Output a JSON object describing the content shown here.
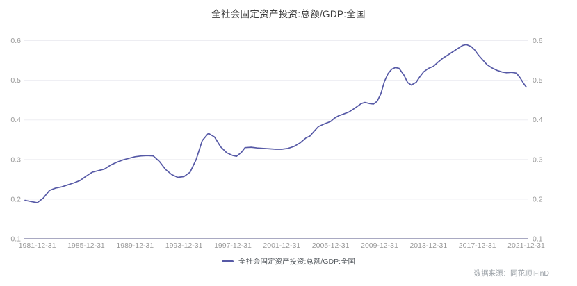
{
  "title": "全社会固定资产投资:总额/GDP:全国",
  "legend": {
    "label": "全社会固定资产投资:总额/GDP:全国"
  },
  "source": "数据来源：同花顺iFinD",
  "colors": {
    "line": "#5659a6",
    "gridline": "#ededf2",
    "axis_line": "#a9a9c2",
    "tick_label": "#999999",
    "title_text": "#3d3d3d",
    "legend_text": "#555a5f",
    "source_text": "#9aa0a6"
  },
  "chart_data": {
    "type": "line",
    "title": "全社会固定资产投资:总额/GDP:全国",
    "xlabel": "",
    "ylabel": "",
    "grid": true,
    "legend_position": "bottom-center",
    "ylim": [
      0.1,
      0.64
    ],
    "y_ticks": [
      0.6,
      0.5,
      0.4,
      0.3,
      0.2,
      0.1
    ],
    "x_ticks": [
      "1981-12-31",
      "1985-12-31",
      "1989-12-31",
      "1993-12-31",
      "1997-12-31",
      "2001-12-31",
      "2005-12-31",
      "2009-12-31",
      "2013-12-31",
      "2017-12-31",
      "2021-12-31"
    ],
    "x_range_years": [
      1980,
      2021
    ],
    "series": [
      {
        "name": "全社会固定资产投资:总额/GDP:全国",
        "color": "#5659a6",
        "points": [
          [
            1980.0,
            0.197
          ],
          [
            1980.5,
            0.194
          ],
          [
            1981.0,
            0.191
          ],
          [
            1981.5,
            0.203
          ],
          [
            1982.0,
            0.222
          ],
          [
            1982.5,
            0.228
          ],
          [
            1983.0,
            0.231
          ],
          [
            1983.5,
            0.236
          ],
          [
            1984.0,
            0.241
          ],
          [
            1984.5,
            0.247
          ],
          [
            1985.0,
            0.258
          ],
          [
            1985.5,
            0.268
          ],
          [
            1986.0,
            0.272
          ],
          [
            1986.5,
            0.276
          ],
          [
            1987.0,
            0.286
          ],
          [
            1987.5,
            0.293
          ],
          [
            1988.0,
            0.299
          ],
          [
            1988.5,
            0.303
          ],
          [
            1989.0,
            0.307
          ],
          [
            1989.5,
            0.309
          ],
          [
            1990.0,
            0.31
          ],
          [
            1990.5,
            0.309
          ],
          [
            1991.0,
            0.295
          ],
          [
            1991.5,
            0.275
          ],
          [
            1992.0,
            0.262
          ],
          [
            1992.5,
            0.255
          ],
          [
            1993.0,
            0.257
          ],
          [
            1993.5,
            0.268
          ],
          [
            1994.0,
            0.3
          ],
          [
            1994.5,
            0.348
          ],
          [
            1995.0,
            0.366
          ],
          [
            1995.5,
            0.357
          ],
          [
            1996.0,
            0.332
          ],
          [
            1996.5,
            0.317
          ],
          [
            1997.0,
            0.31
          ],
          [
            1997.3,
            0.308
          ],
          [
            1997.7,
            0.318
          ],
          [
            1998.0,
            0.33
          ],
          [
            1998.5,
            0.331
          ],
          [
            1999.0,
            0.329
          ],
          [
            1999.5,
            0.328
          ],
          [
            2000.0,
            0.327
          ],
          [
            2000.5,
            0.326
          ],
          [
            2001.0,
            0.326
          ],
          [
            2001.5,
            0.328
          ],
          [
            2002.0,
            0.333
          ],
          [
            2002.5,
            0.342
          ],
          [
            2003.0,
            0.355
          ],
          [
            2003.3,
            0.359
          ],
          [
            2003.7,
            0.373
          ],
          [
            2004.0,
            0.383
          ],
          [
            2004.5,
            0.39
          ],
          [
            2005.0,
            0.396
          ],
          [
            2005.3,
            0.404
          ],
          [
            2005.7,
            0.411
          ],
          [
            2006.0,
            0.414
          ],
          [
            2006.5,
            0.42
          ],
          [
            2007.0,
            0.43
          ],
          [
            2007.5,
            0.441
          ],
          [
            2007.8,
            0.444
          ],
          [
            2008.2,
            0.441
          ],
          [
            2008.5,
            0.44
          ],
          [
            2008.8,
            0.447
          ],
          [
            2009.1,
            0.465
          ],
          [
            2009.4,
            0.497
          ],
          [
            2009.7,
            0.517
          ],
          [
            2010.0,
            0.528
          ],
          [
            2010.3,
            0.532
          ],
          [
            2010.6,
            0.53
          ],
          [
            2011.0,
            0.513
          ],
          [
            2011.3,
            0.494
          ],
          [
            2011.6,
            0.488
          ],
          [
            2012.0,
            0.495
          ],
          [
            2012.3,
            0.509
          ],
          [
            2012.6,
            0.521
          ],
          [
            2013.0,
            0.53
          ],
          [
            2013.4,
            0.535
          ],
          [
            2013.8,
            0.546
          ],
          [
            2014.2,
            0.556
          ],
          [
            2014.6,
            0.564
          ],
          [
            2015.0,
            0.572
          ],
          [
            2015.4,
            0.58
          ],
          [
            2015.8,
            0.588
          ],
          [
            2016.1,
            0.59
          ],
          [
            2016.5,
            0.585
          ],
          [
            2016.8,
            0.576
          ],
          [
            2017.1,
            0.563
          ],
          [
            2017.5,
            0.549
          ],
          [
            2017.8,
            0.539
          ],
          [
            2018.2,
            0.531
          ],
          [
            2018.6,
            0.525
          ],
          [
            2019.0,
            0.521
          ],
          [
            2019.4,
            0.519
          ],
          [
            2019.8,
            0.52
          ],
          [
            2020.2,
            0.518
          ],
          [
            2020.5,
            0.506
          ],
          [
            2020.8,
            0.491
          ],
          [
            2021.0,
            0.483
          ]
        ]
      }
    ]
  }
}
